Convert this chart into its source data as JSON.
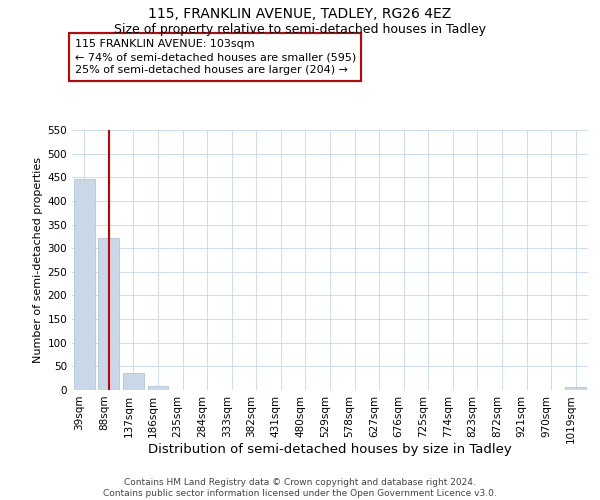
{
  "title1": "115, FRANKLIN AVENUE, TADLEY, RG26 4EZ",
  "title2": "Size of property relative to semi-detached houses in Tadley",
  "xlabel": "Distribution of semi-detached houses by size in Tadley",
  "ylabel": "Number of semi-detached properties",
  "categories": [
    "39sqm",
    "88sqm",
    "137sqm",
    "186sqm",
    "235sqm",
    "284sqm",
    "333sqm",
    "382sqm",
    "431sqm",
    "480sqm",
    "529sqm",
    "578sqm",
    "627sqm",
    "676sqm",
    "725sqm",
    "774sqm",
    "823sqm",
    "872sqm",
    "921sqm",
    "970sqm",
    "1019sqm"
  ],
  "values": [
    447,
    322,
    36,
    8,
    0,
    0,
    0,
    0,
    0,
    0,
    0,
    0,
    0,
    0,
    0,
    0,
    0,
    0,
    0,
    0,
    6
  ],
  "bar_color": "#c8d8e8",
  "bar_edge_color": "#a8c0d0",
  "vline_x_index": 1,
  "vline_color": "#cc0000",
  "ylim": [
    0,
    550
  ],
  "yticks": [
    0,
    50,
    100,
    150,
    200,
    250,
    300,
    350,
    400,
    450,
    500,
    550
  ],
  "annotation_text": "115 FRANKLIN AVENUE: 103sqm\n← 74% of semi-detached houses are smaller (595)\n25% of semi-detached houses are larger (204) →",
  "ann_box_color": "#ffffff",
  "ann_border_color": "#cc0000",
  "footnote": "Contains HM Land Registry data © Crown copyright and database right 2024.\nContains public sector information licensed under the Open Government Licence v3.0.",
  "bg_color": "#ffffff",
  "grid_color": "#c8d8e8",
  "title1_fontsize": 10,
  "title2_fontsize": 9,
  "xlabel_fontsize": 9.5,
  "ylabel_fontsize": 8,
  "tick_fontsize": 7.5,
  "footnote_fontsize": 6.5,
  "ann_fontsize": 8
}
